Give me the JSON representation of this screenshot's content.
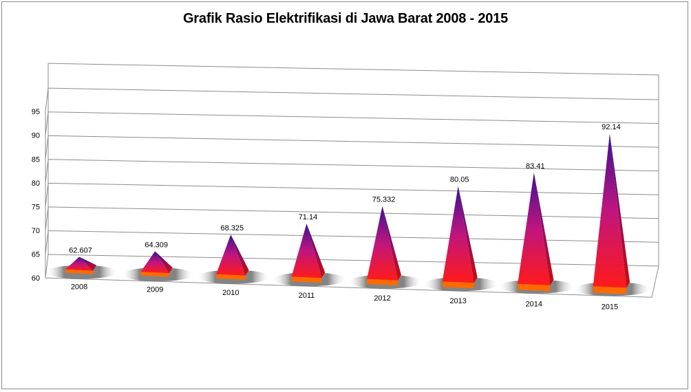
{
  "chart_data": {
    "type": "bar",
    "subtype": "3d-pyramid",
    "title": "Grafik Rasio Elektrifikasi di Jawa Barat 2008 - 2015",
    "xlabel": "",
    "ylabel": "",
    "categories": [
      "2008",
      "2009",
      "2010",
      "2011",
      "2012",
      "2013",
      "2014",
      "2015"
    ],
    "values": [
      62.607,
      64.309,
      68.325,
      71.14,
      75.332,
      80.05,
      83.41,
      92.14
    ],
    "data_labels": [
      "62.607",
      "64.309",
      "68.325",
      "71.14",
      "75.332",
      "80.05",
      "83.41",
      "92.14"
    ],
    "ylim": [
      60,
      95
    ],
    "yticks": [
      60,
      65,
      70,
      75,
      80,
      85,
      90,
      95
    ],
    "grid": true,
    "legend": "none",
    "colors": {
      "pyramid_top": "#3a1196",
      "pyramid_mid": "#c0157e",
      "pyramid_base": "#ff1a1a",
      "base_plate": "#ff6a00",
      "gridline": "#8c8c8c"
    }
  }
}
